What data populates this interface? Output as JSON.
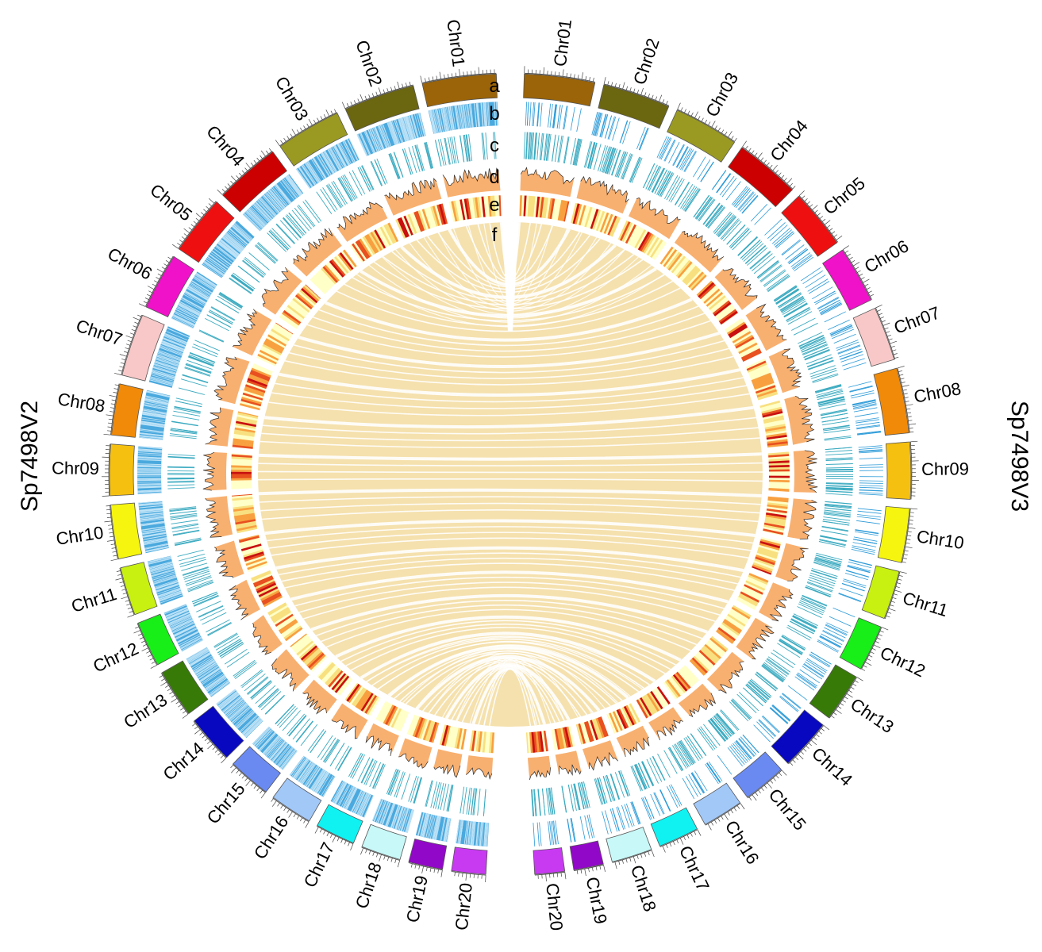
{
  "genomes": {
    "left": {
      "name": "Sp7498V2",
      "side": "left"
    },
    "right": {
      "name": "Sp7498V3",
      "side": "right"
    }
  },
  "track_letters": [
    "a",
    "b",
    "c",
    "d",
    "e",
    "f"
  ],
  "chromosomes_right": [
    {
      "label": "Chr01",
      "color": "#9B6408"
    },
    {
      "label": "Chr02",
      "color": "#6B6610"
    },
    {
      "label": "Chr03",
      "color": "#9A9A22"
    },
    {
      "label": "Chr04",
      "color": "#CC0000"
    },
    {
      "label": "Chr05",
      "color": "#EE1010"
    },
    {
      "label": "Chr06",
      "color": "#F012C8"
    },
    {
      "label": "Chr07",
      "color": "#F8C8C8"
    },
    {
      "label": "Chr08",
      "color": "#F08A08"
    },
    {
      "label": "Chr09",
      "color": "#F5C010"
    },
    {
      "label": "Chr10",
      "color": "#F5F510"
    },
    {
      "label": "Chr11",
      "color": "#C8F010"
    },
    {
      "label": "Chr12",
      "color": "#18EE18"
    },
    {
      "label": "Chr13",
      "color": "#387A08"
    },
    {
      "label": "Chr14",
      "color": "#0808C0"
    },
    {
      "label": "Chr15",
      "color": "#6A8AF2"
    },
    {
      "label": "Chr16",
      "color": "#A2C8F8"
    },
    {
      "label": "Chr17",
      "color": "#10F2F2"
    },
    {
      "label": "Chr18",
      "color": "#C8F8F8"
    },
    {
      "label": "Chr19",
      "color": "#9208C8"
    },
    {
      "label": "Chr20",
      "color": "#C83AF2"
    }
  ],
  "chromosomes_left": [
    {
      "label": "Chr01",
      "color": "#9B6408"
    },
    {
      "label": "Chr02",
      "color": "#6B6610"
    },
    {
      "label": "Chr03",
      "color": "#9A9A22"
    },
    {
      "label": "Chr04",
      "color": "#CC0000"
    },
    {
      "label": "Chr05",
      "color": "#EE1010"
    },
    {
      "label": "Chr06",
      "color": "#F012C8"
    },
    {
      "label": "Chr07",
      "color": "#F8C8C8"
    },
    {
      "label": "Chr08",
      "color": "#F08A08"
    },
    {
      "label": "Chr09",
      "color": "#F5C010"
    },
    {
      "label": "Chr10",
      "color": "#F5F510"
    },
    {
      "label": "Chr11",
      "color": "#C8F010"
    },
    {
      "label": "Chr12",
      "color": "#18EE18"
    },
    {
      "label": "Chr13",
      "color": "#387A08"
    },
    {
      "label": "Chr14",
      "color": "#0808C0"
    },
    {
      "label": "Chr15",
      "color": "#6A8AF2"
    },
    {
      "label": "Chr16",
      "color": "#A2C8F8"
    },
    {
      "label": "Chr17",
      "color": "#10F2F2"
    },
    {
      "label": "Chr18",
      "color": "#C8F8F8"
    },
    {
      "label": "Chr19",
      "color": "#9208C8"
    },
    {
      "label": "Chr20",
      "color": "#C83AF2"
    }
  ],
  "colors": {
    "track_b": "#2A9AD8",
    "track_c": "#3AAAC0",
    "track_d_fill": "#F8B070",
    "track_d_line": "#2A2A2A",
    "heatmap": [
      "#FFFFC8",
      "#F8E080",
      "#F8A040",
      "#E85020",
      "#C81010"
    ],
    "links": "#F3DCA0",
    "link_edge": "#FFFFFF"
  }
}
